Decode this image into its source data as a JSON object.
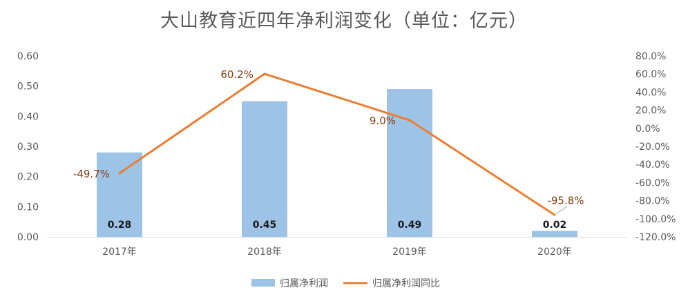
{
  "chart_data": {
    "type": "bar",
    "title": "大山教育近四年净利润变化（单位：亿元）",
    "categories": [
      "2017年",
      "2018年",
      "2019年",
      "2020年"
    ],
    "series": [
      {
        "name": "归属净利润",
        "type": "bar",
        "axis": "left",
        "values": [
          0.28,
          0.45,
          0.49,
          0.02
        ],
        "labels": [
          "0.28",
          "0.45",
          "0.49",
          "0.02"
        ],
        "color": "#9dc3e6"
      },
      {
        "name": "归属净利润同比",
        "type": "line",
        "axis": "right",
        "values": [
          -49.7,
          60.2,
          9.0,
          -95.8
        ],
        "labels": [
          "-49.7%",
          "60.2%",
          "9.0%",
          "-95.8%"
        ],
        "color": "#ed7d31"
      }
    ],
    "y_left": {
      "ylim": [
        0,
        0.6
      ],
      "ticks": [
        "0.00",
        "0.10",
        "0.20",
        "0.30",
        "0.40",
        "0.50",
        "0.60"
      ]
    },
    "y_right": {
      "ylim": [
        -120,
        80
      ],
      "ticks": [
        "-120.0%",
        "-100.0%",
        "-80.0%",
        "-60.0%",
        "-40.0%",
        "-20.0%",
        "0.0%",
        "20.0%",
        "40.0%",
        "60.0%",
        "80.0%"
      ]
    },
    "grid": false,
    "legend": "bottom-center"
  }
}
